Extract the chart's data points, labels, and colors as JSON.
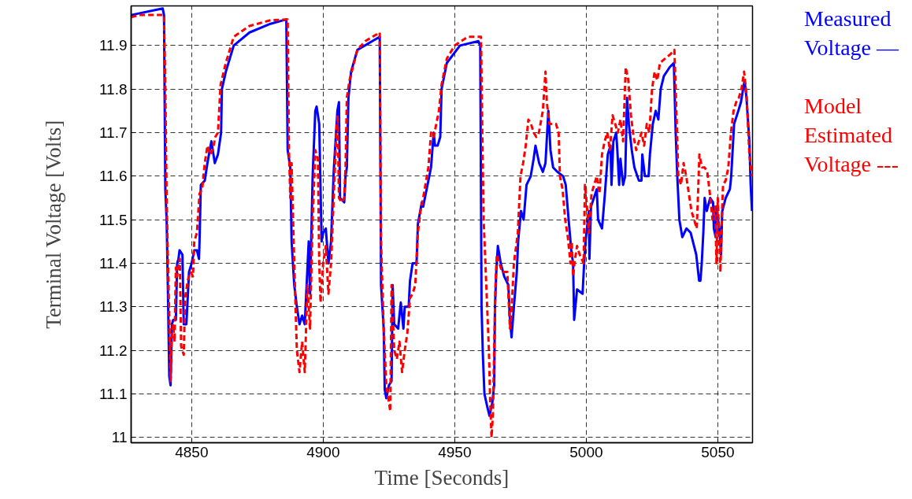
{
  "chart_data": {
    "type": "line",
    "xlabel": "Time [Seconds]",
    "ylabel": "Terminal Voltage [Volts]",
    "xlim": [
      4827,
      5063.2
    ],
    "ylim": [
      10.988,
      11.991
    ],
    "xticks": [
      4850,
      4900,
      4950,
      5000,
      5050
    ],
    "yticks": [
      11,
      11.1,
      11.2,
      11.3,
      11.4,
      11.5,
      11.6,
      11.7,
      11.8,
      11.9
    ],
    "grid": true,
    "marker": "none",
    "series": [
      {
        "name": "Measured Voltage —",
        "color": "#0000ff",
        "line_style": "solid",
        "x": [
          4827,
          4839,
          4839.5,
          4840,
          4840.5,
          4841,
          4841.5,
          4842,
          4842.5,
          4843,
          4844,
          4844.5,
          4845,
          4845.4,
          4846.5,
          4847,
          4848,
          4849,
          4850,
          4851,
          4852,
          4852.8,
          4853,
          4853.5,
          4855,
          4856,
          4857.5,
          4858.8,
          4860,
          4861.2,
          4861.5,
          4863,
          4866,
          4872,
          4880,
          4886,
          4886.5,
          4887.5,
          4888,
          4889,
          4890,
          4891,
          4892,
          4893,
          4894.5,
          4895,
          4896,
          4897,
          4897.5,
          4898.5,
          4899.4,
          4900,
          4901,
          4902,
          4903,
          4904,
          4905.4,
          4906,
          4906.4,
          4908,
          4908.5,
          4909,
          4909.6,
          4910.6,
          4913,
          4921.5,
          4922,
          4923,
          4923.4,
          4924,
          4925,
          4926,
          4926.4,
          4927,
          4928.5,
          4929.5,
          4930.5,
          4931,
          4932.5,
          4933,
          4934,
          4935.5,
          4936,
          4937.5,
          4938,
          4941,
          4942,
          4942.5,
          4943.5,
          4944.5,
          4945,
          4947,
          4952,
          4959,
          4959.7,
          4960.2,
          4960.7,
          4961.3,
          4962.4,
          4963.2,
          4964.3,
          4965,
          4965.3,
          4965.8,
          4966.4,
          4967.5,
          4968.8,
          4970.4,
          4970.9,
          4971.6,
          4972.5,
          4973.6,
          4974.1,
          4975.2,
          4976.2,
          4977.3,
          4978.9,
          4980,
          4980.7,
          4982.1,
          4983.5,
          4984.5,
          4985.6,
          4986.4,
          4987.4,
          4989,
          4991.2,
          4992.2,
          4993.3,
          4994.3,
          4995,
          4995.4,
          4996.5,
          4998.6,
          4999.2,
          4999.7,
          5001,
          5001.2,
          5001.8,
          5004,
          5004.5,
          5006,
          5007.1,
          5008.2,
          5009.2,
          5009.6,
          5010.3,
          5011.4,
          5011.9,
          5012.5,
          5013,
          5014,
          5014.8,
          5015.5,
          5016.2,
          5017.3,
          5018.3,
          5020,
          5021,
          5021.3,
          5022.3,
          5023.7,
          5024.2,
          5025.3,
          5026.4,
          5027.4,
          5028.3,
          5029.5,
          5031.7,
          5033.3,
          5034,
          5034.6,
          5035.4,
          5036.5,
          5038.1,
          5039.7,
          5041.8,
          5042.9,
          5043.4,
          5043.9,
          5044.5,
          5045,
          5045.8,
          5047.1,
          5048.2,
          5048.5,
          5049.2,
          5049.5,
          5050.6,
          5051.2,
          5051.7,
          5053,
          5054.6,
          5055.1,
          5056.2,
          5057.8,
          5058.8,
          5060.2,
          5060.9,
          5062,
          5062.5,
          5063
        ],
        "values": [
          11.97,
          11.985,
          11.97,
          11.57,
          11.5,
          11.33,
          11.14,
          11.12,
          11.26,
          11.27,
          11.27,
          11.4,
          11.41,
          11.43,
          11.42,
          11.26,
          11.26,
          11.38,
          11.4,
          11.43,
          11.43,
          11.41,
          11.45,
          11.58,
          11.59,
          11.63,
          11.68,
          11.63,
          11.65,
          11.7,
          11.8,
          11.84,
          11.9,
          11.93,
          11.95,
          11.96,
          11.66,
          11.62,
          11.45,
          11.35,
          11.3,
          11.26,
          11.28,
          11.26,
          11.45,
          11.33,
          11.6,
          11.75,
          11.76,
          11.72,
          11.45,
          11.47,
          11.48,
          11.4,
          11.45,
          11.61,
          11.75,
          11.77,
          11.55,
          11.54,
          11.6,
          11.62,
          11.78,
          11.84,
          11.89,
          11.92,
          11.35,
          11.25,
          11.11,
          11.09,
          11.12,
          11.13,
          11.35,
          11.26,
          11.25,
          11.31,
          11.25,
          11.3,
          11.3,
          11.36,
          11.4,
          11.4,
          11.49,
          11.54,
          11.53,
          11.62,
          11.7,
          11.67,
          11.67,
          11.69,
          11.8,
          11.86,
          11.9,
          11.91,
          11.9,
          11.3,
          11.19,
          11.1,
          11.07,
          11.05,
          11.08,
          11.12,
          11.3,
          11.38,
          11.44,
          11.4,
          11.37,
          11.35,
          11.28,
          11.23,
          11.3,
          11.38,
          11.45,
          11.52,
          11.5,
          11.58,
          11.6,
          11.64,
          11.67,
          11.63,
          11.61,
          11.63,
          11.75,
          11.66,
          11.62,
          11.61,
          11.6,
          11.58,
          11.5,
          11.43,
          11.4,
          11.27,
          11.34,
          11.33,
          11.4,
          11.45,
          11.52,
          11.41,
          11.53,
          11.57,
          11.5,
          11.48,
          11.56,
          11.65,
          11.67,
          11.58,
          11.68,
          11.7,
          11.65,
          11.58,
          11.64,
          11.58,
          11.6,
          11.78,
          11.72,
          11.66,
          11.62,
          11.59,
          11.59,
          11.65,
          11.6,
          11.6,
          11.65,
          11.72,
          11.75,
          11.73,
          11.8,
          11.83,
          11.85,
          11.86,
          11.7,
          11.6,
          11.5,
          11.46,
          11.48,
          11.47,
          11.42,
          11.36,
          11.36,
          11.4,
          11.47,
          11.55,
          11.52,
          11.55,
          11.54,
          11.48,
          11.46,
          11.53,
          11.48,
          11.42,
          11.52,
          11.55,
          11.57,
          11.6,
          11.72,
          11.75,
          11.77,
          11.82,
          11.78,
          11.68,
          11.58,
          11.52
        ]
      },
      {
        "name": "Model Estimated Voltage ---",
        "color": "#ff0000",
        "line_style": "dashed",
        "x": [
          4827,
          4830,
          4839.5,
          4840,
          4840.5,
          4841,
          4841.5,
          4842,
          4842.5,
          4843,
          4843.5,
          4844,
          4844.5,
          4845,
          4845.5,
          4846,
          4847,
          4847.5,
          4848.5,
          4849.5,
          4850.5,
          4851,
          4852,
          4853,
          4854,
          4855,
          4856,
          4857,
          4858,
          4859,
          4860,
          4861,
          4863,
          4866,
          4872,
          4880,
          4886.5,
          4887,
          4887.5,
          4888,
          4889,
          4890,
          4891,
          4892,
          4893,
          4894,
          4895,
          4896,
          4897,
          4898,
          4898.5,
          4899,
          4900,
          4901,
          4902,
          4903,
          4904,
          4905,
          4905.5,
          4906,
          4907,
          4908,
          4908.5,
          4909,
          4910,
          4913,
          4916,
          4921.5,
          4922,
          4923,
          4924,
          4925,
          4925.5,
          4926,
          4927,
          4928,
          4929,
          4930,
          4931,
          4932,
          4933,
          4934,
          4935,
          4936,
          4937,
          4938,
          4940,
          4941,
          4942,
          4943,
          4944,
          4945,
          4947,
          4950,
          4955,
          4960,
          4960.5,
          4961,
          4962,
          4963,
          4963.5,
          4964,
          4964.5,
          4965.5,
          4966,
          4967,
          4968,
          4969,
          4970,
          4971,
          4971.5,
          4972.5,
          4974,
          4975,
          4976,
          4977,
          4978,
          4979,
          4980,
          4981,
          4982,
          4983.5,
          4984.5,
          4985,
          4986,
          4987,
          4988.5,
          4989.5,
          4990,
          4991,
          4992,
          4993,
          4994,
          4994.5,
          4995,
          4995.5,
          4996.5,
          4997.5,
          4999,
          4999.5,
          5000,
          5001,
          5002,
          5003,
          5004,
          5005,
          5006,
          5007,
          5008,
          5009,
          5010,
          5011,
          5012,
          5013,
          5014,
          5015,
          5016,
          5017,
          5018,
          5019,
          5020,
          5021,
          5022,
          5023,
          5024,
          5025,
          5026,
          5027,
          5028,
          5030,
          5032,
          5033.5,
          5034,
          5035,
          5036,
          5037,
          5038,
          5039,
          5040,
          5041,
          5042,
          5042.5,
          5043,
          5044,
          5045,
          5046,
          5047,
          5048,
          5049,
          5049.5,
          5050,
          5051,
          5051.5,
          5052,
          5053,
          5054,
          5055,
          5056,
          5057,
          5058,
          5059,
          5060,
          5061,
          5062,
          5063
        ],
        "values": [
          11.965,
          11.97,
          11.97,
          11.8,
          11.55,
          11.4,
          11.28,
          11.13,
          11.24,
          11.26,
          11.22,
          11.39,
          11.37,
          11.4,
          11.41,
          11.21,
          11.19,
          11.32,
          11.36,
          11.38,
          11.37,
          11.45,
          11.47,
          11.56,
          11.57,
          11.63,
          11.67,
          11.65,
          11.66,
          11.69,
          11.7,
          11.81,
          11.86,
          11.92,
          11.945,
          11.958,
          11.96,
          11.66,
          11.55,
          11.63,
          11.4,
          11.2,
          11.15,
          11.22,
          11.15,
          11.35,
          11.25,
          11.5,
          11.66,
          11.64,
          11.4,
          11.31,
          11.4,
          11.44,
          11.33,
          11.4,
          11.55,
          11.7,
          11.74,
          11.55,
          11.54,
          11.55,
          11.62,
          11.78,
          11.82,
          11.89,
          11.91,
          11.93,
          11.45,
          11.25,
          11.12,
          11.08,
          11.06,
          11.35,
          11.2,
          11.18,
          11.22,
          11.15,
          11.2,
          11.24,
          11.32,
          11.33,
          11.35,
          11.47,
          11.52,
          11.55,
          11.62,
          11.7,
          11.69,
          11.72,
          11.75,
          11.81,
          11.87,
          11.9,
          11.92,
          11.92,
          11.7,
          11.5,
          11.35,
          11.2,
          11.08,
          11.0,
          11.05,
          11.35,
          11.42,
          11.4,
          11.38,
          11.38,
          11.38,
          11.25,
          11.28,
          11.4,
          11.47,
          11.6,
          11.63,
          11.67,
          11.73,
          11.72,
          11.7,
          11.69,
          11.7,
          11.75,
          11.84,
          11.77,
          11.72,
          11.72,
          11.72,
          11.7,
          11.6,
          11.57,
          11.5,
          11.46,
          11.4,
          11.45,
          11.37,
          11.4,
          11.44,
          11.42,
          11.4,
          11.58,
          11.55,
          11.47,
          11.56,
          11.58,
          11.6,
          11.56,
          11.65,
          11.68,
          11.7,
          11.66,
          11.74,
          11.72,
          11.7,
          11.73,
          11.68,
          11.85,
          11.82,
          11.74,
          11.69,
          11.66,
          11.68,
          11.7,
          11.67,
          11.72,
          11.7,
          11.8,
          11.84,
          11.82,
          11.86,
          11.87,
          11.88,
          11.89,
          11.8,
          11.6,
          11.58,
          11.63,
          11.6,
          11.56,
          11.52,
          11.5,
          11.48,
          11.56,
          11.65,
          11.62,
          11.62,
          11.61,
          11.56,
          11.5,
          11.53,
          11.4,
          11.55,
          11.38,
          11.5,
          11.58,
          11.59,
          11.62,
          11.7,
          11.75,
          11.77,
          11.78,
          11.8,
          11.84,
          11.78,
          11.65,
          11.6
        ]
      }
    ]
  }
}
